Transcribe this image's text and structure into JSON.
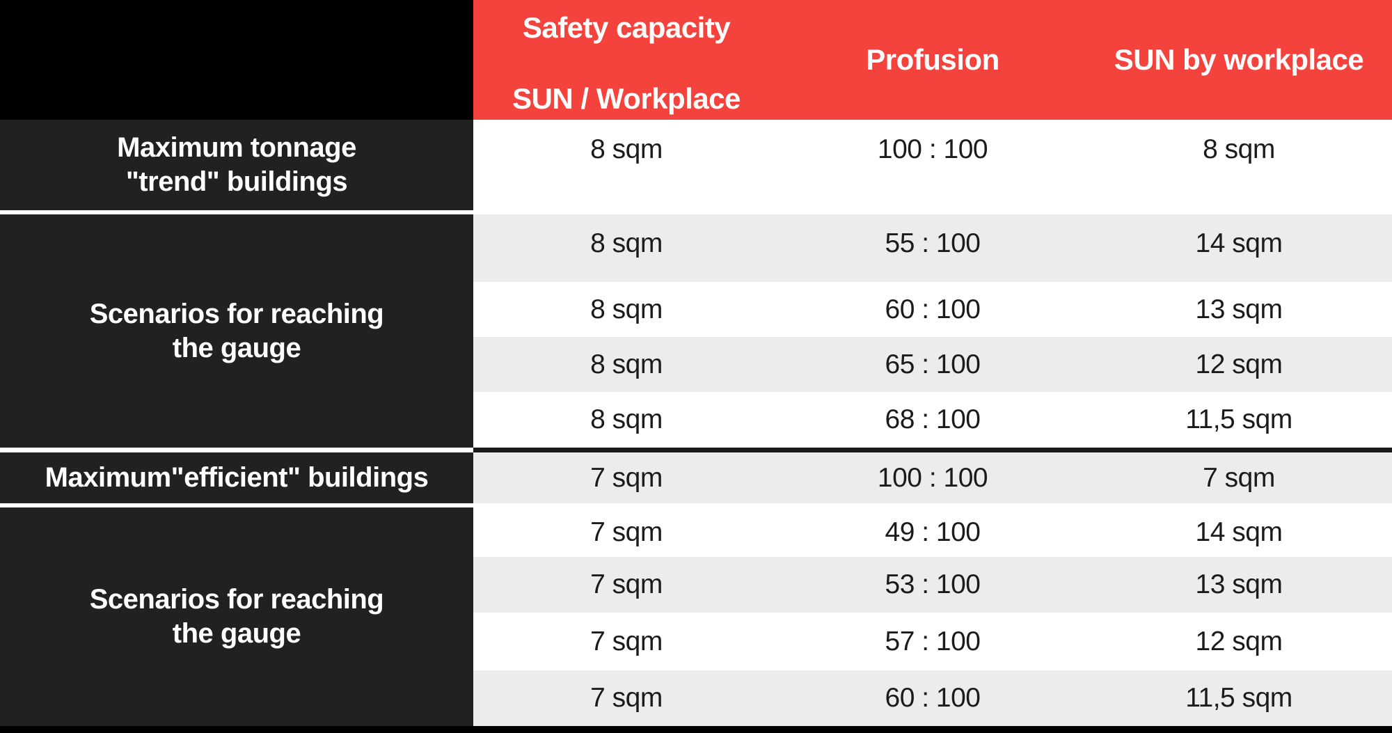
{
  "colors": {
    "header_red": "#F4433C",
    "row_header_dark": "#212121",
    "corner_black": "#000000",
    "row_gray": "#ECECEC",
    "row_white": "#FFFFFF",
    "divider_dark": "#1A1A1A",
    "separator_white": "#FFFFFF",
    "data_text": "#1B1B1B",
    "header_text": "#FFFFFF"
  },
  "header": {
    "capacity_line1": "Safety capacity",
    "capacity_line2": "SUN / Workplace",
    "profusion": "Profusion",
    "sun_by_workplace": "SUN by workplace"
  },
  "sections": [
    {
      "max_label": {
        "line1": "Maximum tonnage",
        "line2": "\"trend\" buildings"
      },
      "max_row": {
        "capacity": "8 sqm",
        "profusion": "100 : 100",
        "sun_by_workplace": "8 sqm"
      },
      "scenarios_label": {
        "line1": "Scenarios for reaching",
        "line2": "the gauge"
      },
      "scenario_rows": [
        {
          "capacity": "8 sqm",
          "profusion": "55 : 100",
          "sun_by_workplace": "14 sqm"
        },
        {
          "capacity": "8 sqm",
          "profusion": "60 : 100",
          "sun_by_workplace": "13 sqm"
        },
        {
          "capacity": "8 sqm",
          "profusion": "65 : 100",
          "sun_by_workplace": "12 sqm"
        },
        {
          "capacity": "8 sqm",
          "profusion": "68 : 100",
          "sun_by_workplace": "11,5 sqm"
        }
      ]
    },
    {
      "max_label": {
        "line1": "Maximum\"efficient\" buildings",
        "line2": ""
      },
      "max_row": {
        "capacity": "7 sqm",
        "profusion": "100 : 100",
        "sun_by_workplace": "7 sqm"
      },
      "scenarios_label": {
        "line1": "Scenarios for reaching",
        "line2": "the gauge"
      },
      "scenario_rows": [
        {
          "capacity": "7 sqm",
          "profusion": "49 : 100",
          "sun_by_workplace": "14 sqm"
        },
        {
          "capacity": "7 sqm",
          "profusion": "53 : 100",
          "sun_by_workplace": "13 sqm"
        },
        {
          "capacity": "7 sqm",
          "profusion": "57 : 100",
          "sun_by_workplace": "12 sqm"
        },
        {
          "capacity": "7 sqm",
          "profusion": "60 : 100",
          "sun_by_workplace": "11,5 sqm"
        }
      ]
    }
  ],
  "chart_data": {
    "type": "table",
    "columns": [
      "",
      "Safety capacity SUN / Workplace",
      "Profusion",
      "SUN by workplace"
    ],
    "rows": [
      [
        "Maximum tonnage \"trend\" buildings",
        "8 sqm",
        "100 : 100",
        "8 sqm"
      ],
      [
        "Scenarios for reaching the gauge",
        "8 sqm",
        "55 : 100",
        "14 sqm"
      ],
      [
        "Scenarios for reaching the gauge",
        "8 sqm",
        "60 : 100",
        "13 sqm"
      ],
      [
        "Scenarios for reaching the gauge",
        "8 sqm",
        "65 : 100",
        "12 sqm"
      ],
      [
        "Scenarios for reaching the gauge",
        "8 sqm",
        "68 : 100",
        "11,5 sqm"
      ],
      [
        "Maximum\"efficient\" buildings",
        "7 sqm",
        "100 : 100",
        "7 sqm"
      ],
      [
        "Scenarios for reaching the gauge",
        "7 sqm",
        "49 : 100",
        "14 sqm"
      ],
      [
        "Scenarios for reaching the gauge",
        "7 sqm",
        "53 : 100",
        "13 sqm"
      ],
      [
        "Scenarios for reaching the gauge",
        "7 sqm",
        "57 : 100",
        "12 sqm"
      ],
      [
        "Scenarios for reaching the gauge",
        "7 sqm",
        "60 : 100",
        "11,5 sqm"
      ]
    ],
    "title": "",
    "legend": "none",
    "grid": "off"
  }
}
